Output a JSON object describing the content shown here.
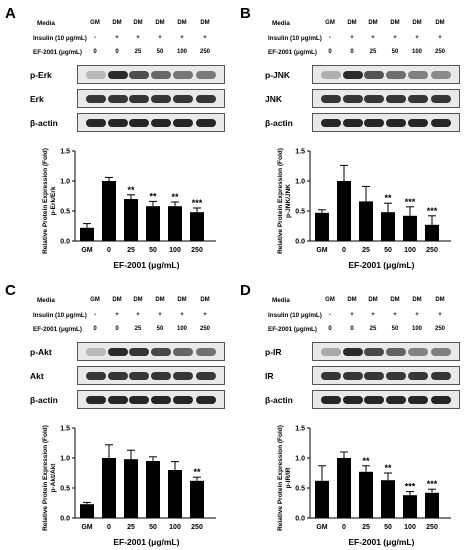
{
  "panels": [
    {
      "label": "A",
      "rows": {
        "media": {
          "label": "Media",
          "lanes": [
            "GM",
            "DM",
            "DM",
            "DM",
            "DM",
            "DM"
          ]
        },
        "insulin": {
          "label": "Insulin (10 μg/mL)",
          "lanes": [
            "-",
            "+",
            "+",
            "+",
            "+",
            "+"
          ]
        },
        "ef": {
          "label": "EF-2001 (μg/mL)",
          "lanes": [
            "0",
            "0",
            "25",
            "50",
            "100",
            "250"
          ]
        }
      },
      "blots": [
        "p-Erk",
        "Erk",
        "β-actin"
      ],
      "chart_data": {
        "type": "bar",
        "categories": [
          "GM",
          "0",
          "25",
          "50",
          "100",
          "250"
        ],
        "values": [
          0.22,
          1.0,
          0.7,
          0.58,
          0.58,
          0.48
        ],
        "errors": [
          0.07,
          0.06,
          0.07,
          0.08,
          0.07,
          0.07
        ],
        "significance": [
          "",
          "",
          "**",
          "**",
          "**",
          "***"
        ],
        "ylabel": "Relative Protein Expression (Fold)",
        "ylabel2": "p-Erk/Erk",
        "xlabel": "EF-2001 (μg/mL)",
        "ylim": [
          0,
          1.5
        ],
        "yticks": [
          "0.0",
          "0.5",
          "1.0",
          "1.5"
        ]
      }
    },
    {
      "label": "B",
      "rows": {
        "media": {
          "label": "Media",
          "lanes": [
            "GM",
            "DM",
            "DM",
            "DM",
            "DM",
            "DM"
          ]
        },
        "insulin": {
          "label": "Insulin (10 μg/mL)",
          "lanes": [
            "-",
            "+",
            "+",
            "+",
            "+",
            "+"
          ]
        },
        "ef": {
          "label": "EF-2001 (μg/mL)",
          "lanes": [
            "0",
            "0",
            "25",
            "50",
            "100",
            "250"
          ]
        }
      },
      "blots": [
        "p-JNK",
        "JNK",
        "β-actin"
      ],
      "chart_data": {
        "type": "bar",
        "categories": [
          "GM",
          "0",
          "25",
          "50",
          "100",
          "250"
        ],
        "values": [
          0.47,
          1.0,
          0.66,
          0.48,
          0.42,
          0.27
        ],
        "errors": [
          0.05,
          0.26,
          0.25,
          0.15,
          0.15,
          0.15
        ],
        "significance": [
          "",
          "",
          "",
          "**",
          "***",
          "***"
        ],
        "ylabel": "Relative Protein Expression (Fold)",
        "ylabel2": "p-JNK/JNK",
        "xlabel": "EF-2001 (μg/mL)",
        "ylim": [
          0,
          1.5
        ],
        "yticks": [
          "0.0",
          "0.5",
          "1.0",
          "1.5"
        ]
      }
    },
    {
      "label": "C",
      "rows": {
        "media": {
          "label": "Media",
          "lanes": [
            "GM",
            "DM",
            "DM",
            "DM",
            "DM",
            "DM"
          ]
        },
        "insulin": {
          "label": "Insulin (10 μg/mL)",
          "lanes": [
            "-",
            "+",
            "+",
            "+",
            "+",
            "+"
          ]
        },
        "ef": {
          "label": "EF-2001 (μg/mL)",
          "lanes": [
            "0",
            "0",
            "25",
            "50",
            "100",
            "250"
          ]
        }
      },
      "blots": [
        "p-Akt",
        "Akt",
        "β-actin"
      ],
      "chart_data": {
        "type": "bar",
        "categories": [
          "GM",
          "0",
          "25",
          "50",
          "100",
          "250"
        ],
        "values": [
          0.23,
          1.0,
          0.98,
          0.95,
          0.8,
          0.62
        ],
        "errors": [
          0.03,
          0.22,
          0.15,
          0.07,
          0.14,
          0.06
        ],
        "significance": [
          "",
          "",
          "",
          "",
          "",
          "**"
        ],
        "ylabel": "Relative Protein Expression (Fold)",
        "ylabel2": "p-Akt/Akt",
        "xlabel": "EF-2001 (μg/mL)",
        "ylim": [
          0,
          1.5
        ],
        "yticks": [
          "0.0",
          "0.5",
          "1.0",
          "1.5"
        ]
      }
    },
    {
      "label": "D",
      "rows": {
        "media": {
          "label": "Media",
          "lanes": [
            "GM",
            "DM",
            "DM",
            "DM",
            "DM",
            "DM"
          ]
        },
        "insulin": {
          "label": "Insulin (10 μg/mL)",
          "lanes": [
            "-",
            "+",
            "+",
            "+",
            "+",
            "+"
          ]
        },
        "ef": {
          "label": "EF-2001 (μg/mL)",
          "lanes": [
            "0",
            "0",
            "25",
            "50",
            "100",
            "250"
          ]
        }
      },
      "blots": [
        "p-IR",
        "IR",
        "β-actin"
      ],
      "chart_data": {
        "type": "bar",
        "categories": [
          "GM",
          "0",
          "25",
          "50",
          "100",
          "250"
        ],
        "values": [
          0.62,
          1.0,
          0.77,
          0.63,
          0.38,
          0.42
        ],
        "errors": [
          0.25,
          0.1,
          0.1,
          0.12,
          0.06,
          0.06
        ],
        "significance": [
          "",
          "",
          "**",
          "**",
          "***",
          "***"
        ],
        "ylabel": "Relative Protein Expression (Fold)",
        "ylabel2": "p-IR/IR",
        "xlabel": "EF-2001 (μg/mL)",
        "ylim": [
          0,
          1.5
        ],
        "yticks": [
          "0.0",
          "0.5",
          "1.0",
          "1.5"
        ]
      }
    }
  ]
}
